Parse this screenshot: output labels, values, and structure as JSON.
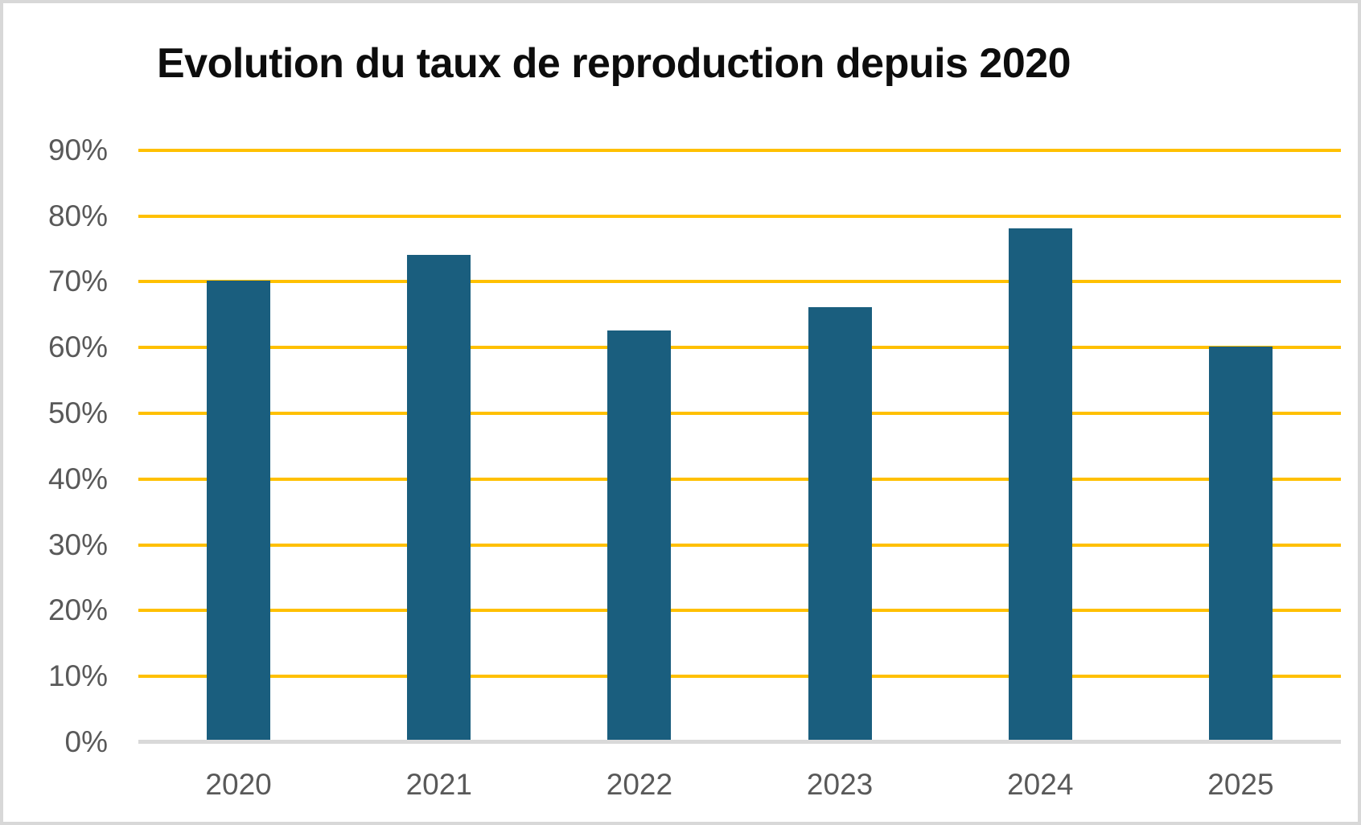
{
  "chart_data": {
    "type": "bar",
    "title": "Evolution du taux de reproduction depuis 2020",
    "categories": [
      "2020",
      "2021",
      "2022",
      "2023",
      "2024",
      "2025"
    ],
    "values": [
      70,
      74,
      62.5,
      66,
      78,
      60
    ],
    "xlabel": "",
    "ylabel": "",
    "ylim": [
      0,
      90
    ],
    "ytick_step": 10,
    "ytick_labels": [
      "0%",
      "10%",
      "20%",
      "30%",
      "40%",
      "50%",
      "60%",
      "70%",
      "80%",
      "90%"
    ],
    "grid": "horizontal",
    "legend_position": "none",
    "colors": {
      "bar_fill": "#1A5E7E",
      "gridline": "#FFC000",
      "axis_baseline": "#D9D9D9",
      "tick_label": "#595959",
      "title": "#0D0D0D",
      "frame_border": "#D8D8D8",
      "background": "#FFFFFF"
    }
  }
}
